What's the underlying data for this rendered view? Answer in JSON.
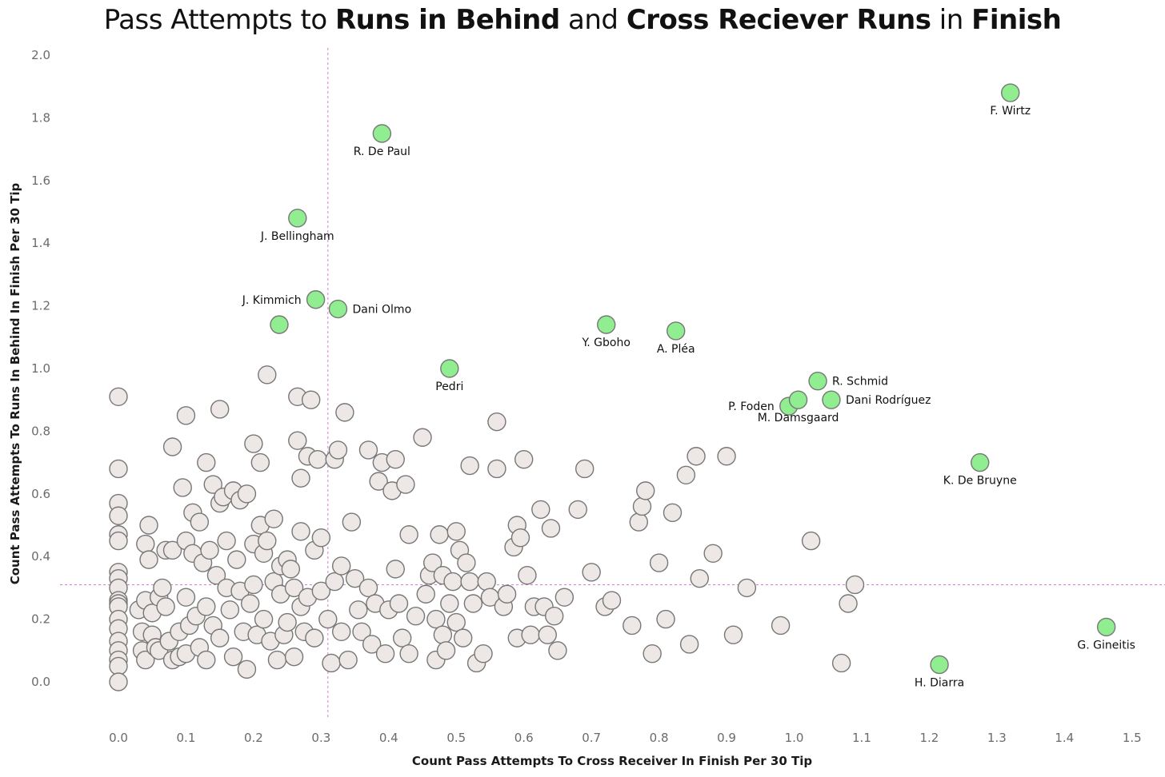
{
  "title_parts": [
    {
      "text": "Pass Attempts to ",
      "bold": false
    },
    {
      "text": "Runs in Behind",
      "bold": true
    },
    {
      "text": " and ",
      "bold": false
    },
    {
      "text": "Cross Reciever Runs",
      "bold": true
    },
    {
      "text": " in ",
      "bold": false
    },
    {
      "text": "Finish",
      "bold": true
    }
  ],
  "colors": {
    "highlight_fill": "#90ee90",
    "base_fill": "#ede8e6",
    "marker_stroke": "#777777",
    "reference_line": "#d67bd6"
  },
  "chart_data": {
    "type": "scatter",
    "xlabel": "Count Pass Attempts To Cross Receiver In Finish Per 30 Tip",
    "ylabel": "Count Pass Attempts To Runs In Behind In Finish Per 30 Tip",
    "xlim": [
      -0.09,
      1.55
    ],
    "ylim": [
      -0.12,
      2.03
    ],
    "xticks": [
      "0.0",
      "0.1",
      "0.2",
      "0.3",
      "0.4",
      "0.5",
      "0.6",
      "0.7",
      "0.8",
      "0.9",
      "1.0",
      "1.1",
      "1.2",
      "1.3",
      "1.4",
      "1.5"
    ],
    "yticks": [
      "0.0",
      "0.2",
      "0.4",
      "0.6",
      "0.8",
      "1.0",
      "1.2",
      "1.4",
      "1.6",
      "1.8",
      "2.0"
    ],
    "grid": false,
    "reference_lines": {
      "x": 0.31,
      "y": 0.31
    },
    "highlighted": [
      {
        "name": "F. Wirtz",
        "x": 1.32,
        "y": 1.88,
        "label_pos": "below"
      },
      {
        "name": "R. De Paul",
        "x": 0.39,
        "y": 1.75,
        "label_pos": "below"
      },
      {
        "name": "J. Bellingham",
        "x": 0.265,
        "y": 1.48,
        "label_pos": "below"
      },
      {
        "name": "J. Kimmich",
        "x": 0.292,
        "y": 1.22,
        "label_pos": "left"
      },
      {
        "name": "Dani Olmo",
        "x": 0.325,
        "y": 1.19,
        "label_pos": "right"
      },
      {
        "name": "",
        "x": 0.238,
        "y": 1.14,
        "label_pos": "none"
      },
      {
        "name": "Y. Gboho",
        "x": 0.722,
        "y": 1.14,
        "label_pos": "below"
      },
      {
        "name": "A. Pléa",
        "x": 0.825,
        "y": 1.12,
        "label_pos": "below"
      },
      {
        "name": "Pedri",
        "x": 0.49,
        "y": 1.0,
        "label_pos": "below"
      },
      {
        "name": "R. Schmid",
        "x": 1.035,
        "y": 0.96,
        "label_pos": "right"
      },
      {
        "name": "Dani Rodríguez",
        "x": 1.055,
        "y": 0.9,
        "label_pos": "right"
      },
      {
        "name": "P. Foden",
        "x": 0.992,
        "y": 0.88,
        "label_pos": "left"
      },
      {
        "name": "M. Damsgaard",
        "x": 1.006,
        "y": 0.9,
        "label_pos": "below"
      },
      {
        "name": "K. De Bruyne",
        "x": 1.275,
        "y": 0.7,
        "label_pos": "below"
      },
      {
        "name": "G. Gineitis",
        "x": 1.462,
        "y": 0.175,
        "label_pos": "below"
      },
      {
        "name": "H. Diarra",
        "x": 1.215,
        "y": 0.055,
        "label_pos": "below"
      }
    ],
    "others": [
      [
        0,
        0.91
      ],
      [
        0,
        0.68
      ],
      [
        0,
        0.57
      ],
      [
        0,
        0.53
      ],
      [
        0,
        0.47
      ],
      [
        0,
        0.45
      ],
      [
        0,
        0.35
      ],
      [
        0,
        0.33
      ],
      [
        0,
        0.3
      ],
      [
        0,
        0.26
      ],
      [
        0,
        0.25
      ],
      [
        0,
        0.24
      ],
      [
        0,
        0.2
      ],
      [
        0,
        0.17
      ],
      [
        0,
        0.13
      ],
      [
        0,
        0.1
      ],
      [
        0,
        0.07
      ],
      [
        0,
        0.05
      ],
      [
        0,
        0
      ],
      [
        0.03,
        0.23
      ],
      [
        0.035,
        0.16
      ],
      [
        0.035,
        0.1
      ],
      [
        0.04,
        0.07
      ],
      [
        0.04,
        0.26
      ],
      [
        0.04,
        0.44
      ],
      [
        0.045,
        0.5
      ],
      [
        0.045,
        0.39
      ],
      [
        0.05,
        0.15
      ],
      [
        0.05,
        0.22
      ],
      [
        0.055,
        0.11
      ],
      [
        0.06,
        0.27
      ],
      [
        0.06,
        0.1
      ],
      [
        0.065,
        0.3
      ],
      [
        0.07,
        0.24
      ],
      [
        0.07,
        0.42
      ],
      [
        0.075,
        0.13
      ],
      [
        0.08,
        0.75
      ],
      [
        0.08,
        0.07
      ],
      [
        0.08,
        0.42
      ],
      [
        0.09,
        0.16
      ],
      [
        0.09,
        0.08
      ],
      [
        0.095,
        0.62
      ],
      [
        0.1,
        0.85
      ],
      [
        0.1,
        0.45
      ],
      [
        0.1,
        0.27
      ],
      [
        0.1,
        0.09
      ],
      [
        0.105,
        0.18
      ],
      [
        0.11,
        0.41
      ],
      [
        0.11,
        0.54
      ],
      [
        0.115,
        0.21
      ],
      [
        0.12,
        0.11
      ],
      [
        0.12,
        0.51
      ],
      [
        0.125,
        0.38
      ],
      [
        0.13,
        0.7
      ],
      [
        0.13,
        0.24
      ],
      [
        0.13,
        0.07
      ],
      [
        0.135,
        0.42
      ],
      [
        0.14,
        0.63
      ],
      [
        0.14,
        0.18
      ],
      [
        0.145,
        0.34
      ],
      [
        0.15,
        0.57
      ],
      [
        0.15,
        0.87
      ],
      [
        0.15,
        0.14
      ],
      [
        0.155,
        0.59
      ],
      [
        0.16,
        0.3
      ],
      [
        0.16,
        0.45
      ],
      [
        0.165,
        0.23
      ],
      [
        0.17,
        0.61
      ],
      [
        0.17,
        0.08
      ],
      [
        0.175,
        0.39
      ],
      [
        0.18,
        0.58
      ],
      [
        0.18,
        0.29
      ],
      [
        0.185,
        0.16
      ],
      [
        0.19,
        0.6
      ],
      [
        0.19,
        0.04
      ],
      [
        0.195,
        0.25
      ],
      [
        0.2,
        0.76
      ],
      [
        0.2,
        0.44
      ],
      [
        0.2,
        0.31
      ],
      [
        0.205,
        0.15
      ],
      [
        0.21,
        0.7
      ],
      [
        0.21,
        0.5
      ],
      [
        0.215,
        0.41
      ],
      [
        0.215,
        0.2
      ],
      [
        0.22,
        0.98
      ],
      [
        0.22,
        0.45
      ],
      [
        0.225,
        0.13
      ],
      [
        0.23,
        0.32
      ],
      [
        0.23,
        0.52
      ],
      [
        0.235,
        0.07
      ],
      [
        0.24,
        0.28
      ],
      [
        0.24,
        0.37
      ],
      [
        0.245,
        0.15
      ],
      [
        0.25,
        0.39
      ],
      [
        0.25,
        0.19
      ],
      [
        0.255,
        0.36
      ],
      [
        0.26,
        0.3
      ],
      [
        0.26,
        0.08
      ],
      [
        0.265,
        0.91
      ],
      [
        0.265,
        0.77
      ],
      [
        0.27,
        0.65
      ],
      [
        0.27,
        0.48
      ],
      [
        0.27,
        0.24
      ],
      [
        0.275,
        0.16
      ],
      [
        0.28,
        0.72
      ],
      [
        0.28,
        0.27
      ],
      [
        0.285,
        0.9
      ],
      [
        0.29,
        0.42
      ],
      [
        0.29,
        0.14
      ],
      [
        0.295,
        0.71
      ],
      [
        0.3,
        0.29
      ],
      [
        0.3,
        0.46
      ],
      [
        0.31,
        0.2
      ],
      [
        0.315,
        0.06
      ],
      [
        0.32,
        0.71
      ],
      [
        0.32,
        0.32
      ],
      [
        0.325,
        0.74
      ],
      [
        0.33,
        0.37
      ],
      [
        0.33,
        0.16
      ],
      [
        0.335,
        0.86
      ],
      [
        0.34,
        0.07
      ],
      [
        0.345,
        0.51
      ],
      [
        0.35,
        0.33
      ],
      [
        0.355,
        0.23
      ],
      [
        0.36,
        0.16
      ],
      [
        0.37,
        0.74
      ],
      [
        0.37,
        0.3
      ],
      [
        0.375,
        0.12
      ],
      [
        0.38,
        0.25
      ],
      [
        0.385,
        0.64
      ],
      [
        0.39,
        0.7
      ],
      [
        0.395,
        0.09
      ],
      [
        0.4,
        0.23
      ],
      [
        0.405,
        0.61
      ],
      [
        0.41,
        0.36
      ],
      [
        0.41,
        0.71
      ],
      [
        0.415,
        0.25
      ],
      [
        0.42,
        0.14
      ],
      [
        0.425,
        0.63
      ],
      [
        0.43,
        0.47
      ],
      [
        0.43,
        0.09
      ],
      [
        0.44,
        0.21
      ],
      [
        0.45,
        0.78
      ],
      [
        0.455,
        0.28
      ],
      [
        0.46,
        0.34
      ],
      [
        0.465,
        0.38
      ],
      [
        0.47,
        0.07
      ],
      [
        0.47,
        0.2
      ],
      [
        0.475,
        0.47
      ],
      [
        0.48,
        0.15
      ],
      [
        0.48,
        0.34
      ],
      [
        0.485,
        0.1
      ],
      [
        0.49,
        0.25
      ],
      [
        0.495,
        0.32
      ],
      [
        0.5,
        0.48
      ],
      [
        0.5,
        0.19
      ],
      [
        0.505,
        0.42
      ],
      [
        0.51,
        0.14
      ],
      [
        0.515,
        0.38
      ],
      [
        0.52,
        0.32
      ],
      [
        0.52,
        0.69
      ],
      [
        0.525,
        0.25
      ],
      [
        0.53,
        0.06
      ],
      [
        0.54,
        0.09
      ],
      [
        0.545,
        0.32
      ],
      [
        0.55,
        0.27
      ],
      [
        0.56,
        0.83
      ],
      [
        0.56,
        0.68
      ],
      [
        0.57,
        0.24
      ],
      [
        0.575,
        0.28
      ],
      [
        0.585,
        0.43
      ],
      [
        0.59,
        0.5
      ],
      [
        0.59,
        0.14
      ],
      [
        0.595,
        0.46
      ],
      [
        0.6,
        0.71
      ],
      [
        0.605,
        0.34
      ],
      [
        0.61,
        0.15
      ],
      [
        0.615,
        0.24
      ],
      [
        0.625,
        0.55
      ],
      [
        0.63,
        0.24
      ],
      [
        0.635,
        0.15
      ],
      [
        0.64,
        0.49
      ],
      [
        0.645,
        0.21
      ],
      [
        0.65,
        0.1
      ],
      [
        0.66,
        0.27
      ],
      [
        0.68,
        0.55
      ],
      [
        0.69,
        0.68
      ],
      [
        0.7,
        0.35
      ],
      [
        0.72,
        0.24
      ],
      [
        0.73,
        0.26
      ],
      [
        0.76,
        0.18
      ],
      [
        0.77,
        0.51
      ],
      [
        0.775,
        0.56
      ],
      [
        0.78,
        0.61
      ],
      [
        0.79,
        0.09
      ],
      [
        0.8,
        0.38
      ],
      [
        0.81,
        0.2
      ],
      [
        0.82,
        0.54
      ],
      [
        0.84,
        0.66
      ],
      [
        0.845,
        0.12
      ],
      [
        0.855,
        0.72
      ],
      [
        0.86,
        0.33
      ],
      [
        0.88,
        0.41
      ],
      [
        0.9,
        0.72
      ],
      [
        0.91,
        0.15
      ],
      [
        0.93,
        0.3
      ],
      [
        0.98,
        0.18
      ],
      [
        1.025,
        0.45
      ],
      [
        1.07,
        0.06
      ],
      [
        1.08,
        0.25
      ],
      [
        1.09,
        0.31
      ]
    ]
  }
}
